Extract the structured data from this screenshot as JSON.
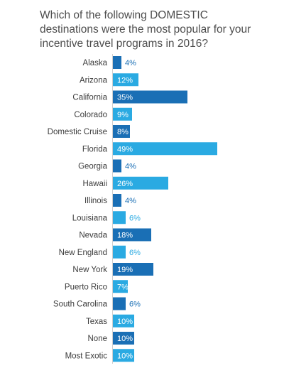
{
  "chart_data": {
    "type": "bar",
    "orientation": "horizontal",
    "title": "Which of the following DOMESTIC destinations were the most popular for your incentive travel programs in 2016?",
    "categories": [
      "Alaska",
      "Arizona",
      "California",
      "Colorado",
      "Domestic Cruise",
      "Florida",
      "Georgia",
      "Hawaii",
      "Illinois",
      "Louisiana",
      "Nevada",
      "New England",
      "New York",
      "Puerto Rico",
      "South Carolina",
      "Texas",
      "None",
      "Most Exotic"
    ],
    "values": [
      4,
      12,
      35,
      9,
      8,
      49,
      4,
      26,
      4,
      6,
      18,
      6,
      19,
      7,
      6,
      10,
      10,
      10
    ],
    "value_labels": [
      "4%",
      "12%",
      "35%",
      "9%",
      "8%",
      "49%",
      "4%",
      "26%",
      "4%",
      "6%",
      "18%",
      "6%",
      "19%",
      "7%",
      "6%",
      "10%",
      "10%",
      "10%"
    ],
    "unit": "%",
    "xlim": [
      0,
      49
    ],
    "grid": false,
    "colors": {
      "dark_bar": "#1a6fb5",
      "light_bar": "#2aaae2",
      "axis": "#cfcfcf",
      "label_inside": "#ffffff",
      "label_outside_dark": "#1a6fb5",
      "label_outside_light": "#2aaae2"
    }
  }
}
